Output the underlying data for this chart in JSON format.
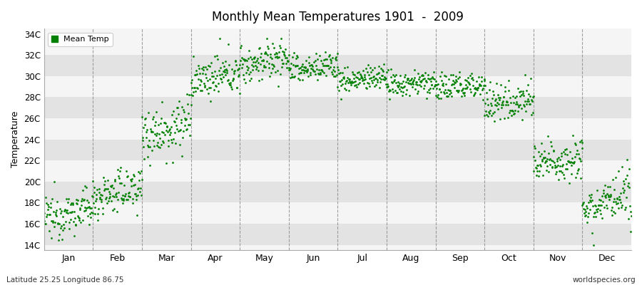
{
  "title": "Monthly Mean Temperatures 1901  -  2009",
  "ylabel": "Temperature",
  "xlabel_labels": [
    "Jan",
    "Feb",
    "Mar",
    "Apr",
    "May",
    "Jun",
    "Jul",
    "Aug",
    "Sep",
    "Oct",
    "Nov",
    "Dec"
  ],
  "footer_left": "Latitude 25.25 Longitude 86.75",
  "footer_right": "worldspecies.org",
  "legend_label": "Mean Temp",
  "ytick_labels": [
    "14C",
    "16C",
    "18C",
    "20C",
    "22C",
    "24C",
    "26C",
    "28C",
    "30C",
    "32C",
    "34C"
  ],
  "ytick_values": [
    14,
    16,
    18,
    20,
    22,
    24,
    26,
    28,
    30,
    32,
    34
  ],
  "ylim": [
    13.5,
    34.5
  ],
  "dot_color": "#008000",
  "bg_color": "#ebebeb",
  "stripe_light": "#f5f5f5",
  "stripe_dark": "#e3e3e3",
  "mean_temps": [
    16.5,
    18.5,
    24.5,
    29.5,
    31.0,
    30.5,
    29.5,
    29.0,
    28.8,
    27.2,
    21.5,
    17.5
  ],
  "std_temps": [
    1.0,
    1.0,
    1.3,
    0.9,
    0.9,
    0.7,
    0.6,
    0.6,
    0.7,
    0.9,
    1.0,
    1.1
  ],
  "trend_per_year": [
    0.01,
    0.01,
    0.01,
    0.008,
    0.008,
    0.006,
    0.005,
    0.005,
    0.005,
    0.008,
    0.01,
    0.01
  ],
  "n_years": 109,
  "start_year": 1901,
  "end_year": 2009
}
